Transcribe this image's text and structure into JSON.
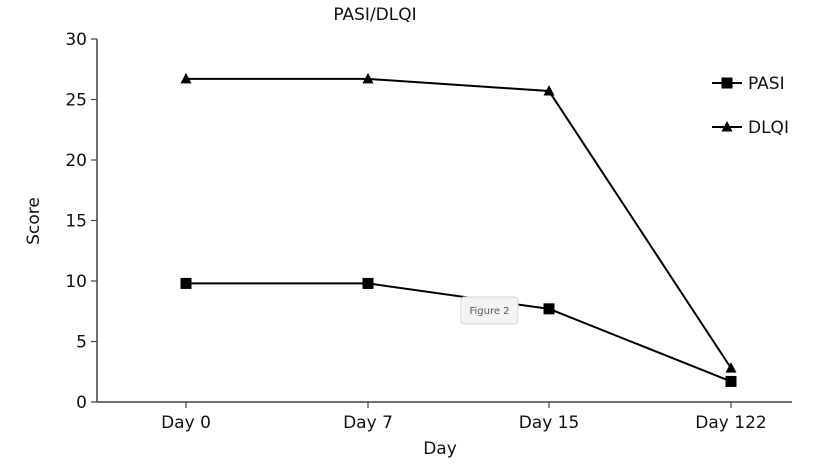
{
  "chart_data": {
    "type": "line",
    "title": "PASI/DLQI",
    "xlabel": "Day",
    "ylabel": "Score",
    "categories": [
      "Day 0",
      "Day 7",
      "Day 15",
      "Day 122"
    ],
    "ylim": [
      0,
      30
    ],
    "yticks": [
      0,
      5,
      10,
      15,
      20,
      25,
      30
    ],
    "series": [
      {
        "name": "PASI",
        "marker": "square",
        "color": "#000000",
        "values": [
          9.8,
          9.8,
          7.7,
          1.7
        ]
      },
      {
        "name": "DLQI",
        "marker": "triangle",
        "color": "#000000",
        "values": [
          26.7,
          26.7,
          25.7,
          2.8
        ]
      }
    ],
    "legend_position": "top-right",
    "grid": false,
    "annotation": "Figure 2"
  }
}
